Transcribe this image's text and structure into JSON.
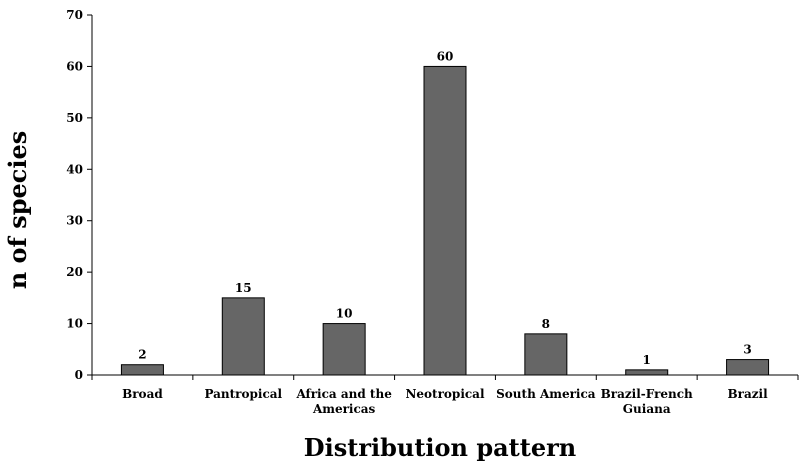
{
  "chart_data": {
    "type": "bar",
    "categories": [
      [
        "Broad"
      ],
      [
        "Pantropical"
      ],
      [
        "Africa and the",
        "Americas"
      ],
      [
        "Neotropical"
      ],
      [
        "South America"
      ],
      [
        "Brazil-French",
        "Guiana"
      ],
      [
        "Brazil"
      ]
    ],
    "values": [
      2,
      15,
      10,
      60,
      8,
      1,
      3
    ],
    "data_labels": [
      "2",
      "15",
      "10",
      "60",
      "8",
      "1",
      "3"
    ],
    "xlabel": "Distribution  pattern",
    "ylabel": "n of  species",
    "ylim": [
      0,
      70
    ],
    "yticks": [
      0,
      10,
      20,
      30,
      40,
      50,
      60,
      70
    ],
    "bar_color": "#666666",
    "bar_edge_color": "#000000",
    "grid": false,
    "legend": "none"
  }
}
